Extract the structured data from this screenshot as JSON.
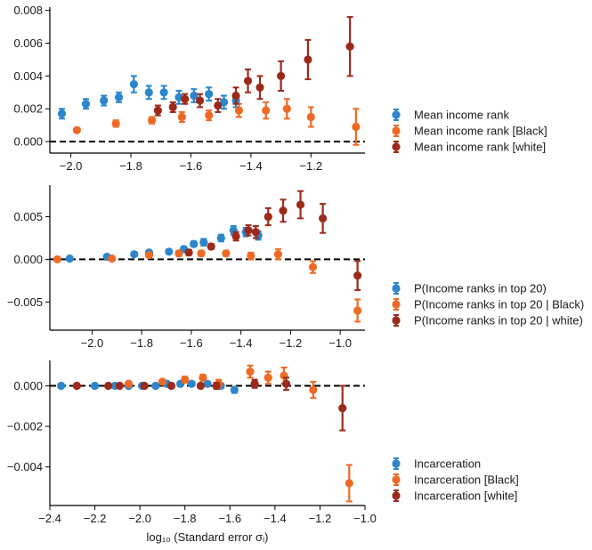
{
  "colors": {
    "blue": "#2b86cc",
    "orange": "#ee6a24",
    "darkred": "#9c2a1a",
    "axis": "#000000"
  },
  "chart_data": [
    {
      "type": "scatter",
      "panel": "top",
      "xlabel": "",
      "ylabel": "",
      "xlim": [
        -2.07,
        -1.02
      ],
      "ylim": [
        -0.0007,
        0.0082
      ],
      "xticks": [
        {
          "v": -2.0,
          "l": "−2.0"
        },
        {
          "v": -1.8,
          "l": "−1.8"
        },
        {
          "v": -1.6,
          "l": "−1.6"
        },
        {
          "v": -1.4,
          "l": "−1.4"
        },
        {
          "v": -1.2,
          "l": "−1.2"
        }
      ],
      "yticks": [
        {
          "v": 0.0,
          "l": "0.000"
        },
        {
          "v": 0.002,
          "l": "0.002"
        },
        {
          "v": 0.004,
          "l": "0.004"
        },
        {
          "v": 0.006,
          "l": "0.006"
        },
        {
          "v": 0.008,
          "l": "0.008"
        }
      ],
      "legend_position": "right",
      "series": [
        {
          "name": "Mean income rank",
          "color": "blue",
          "points": [
            [
              -2.03,
              0.0017,
              0.0003
            ],
            [
              -1.95,
              0.0023,
              0.0003
            ],
            [
              -1.89,
              0.0025,
              0.0003
            ],
            [
              -1.84,
              0.0027,
              0.0003
            ],
            [
              -1.79,
              0.0035,
              0.0005
            ],
            [
              -1.74,
              0.003,
              0.0004
            ],
            [
              -1.69,
              0.003,
              0.0004
            ],
            [
              -1.64,
              0.0027,
              0.0004
            ],
            [
              -1.59,
              0.0028,
              0.0004
            ],
            [
              -1.54,
              0.0029,
              0.0004
            ],
            [
              -1.49,
              0.0024,
              0.0004
            ],
            [
              -1.45,
              0.0025,
              0.0004
            ]
          ]
        },
        {
          "name": "Mean income rank [Black]",
          "color": "orange",
          "points": [
            [
              -1.98,
              0.0007,
              0.0001
            ],
            [
              -1.85,
              0.0011,
              0.0002
            ],
            [
              -1.73,
              0.0013,
              0.0002
            ],
            [
              -1.63,
              0.0015,
              0.0003
            ],
            [
              -1.54,
              0.0016,
              0.0003
            ],
            [
              -1.44,
              0.0019,
              0.0004
            ],
            [
              -1.35,
              0.0019,
              0.0005
            ],
            [
              -1.28,
              0.002,
              0.0006
            ],
            [
              -1.2,
              0.0015,
              0.0006
            ],
            [
              -1.05,
              0.0009,
              0.0011
            ]
          ]
        },
        {
          "name": "Mean income rank [white]",
          "color": "darkred",
          "points": [
            [
              -1.71,
              0.0019,
              0.0003
            ],
            [
              -1.66,
              0.0021,
              0.0003
            ],
            [
              -1.62,
              0.0026,
              0.0003
            ],
            [
              -1.57,
              0.0025,
              0.0004
            ],
            [
              -1.51,
              0.0022,
              0.0004
            ],
            [
              -1.45,
              0.0028,
              0.0005
            ],
            [
              -1.41,
              0.0037,
              0.0007
            ],
            [
              -1.37,
              0.0033,
              0.0007
            ],
            [
              -1.3,
              0.004,
              0.0009
            ],
            [
              -1.21,
              0.005,
              0.0012
            ],
            [
              -1.07,
              0.0058,
              0.0018
            ]
          ]
        }
      ]
    },
    {
      "type": "scatter",
      "panel": "middle",
      "xlabel": "",
      "ylabel": "",
      "xlim": [
        -2.17,
        -0.9
      ],
      "ylim": [
        -0.0083,
        0.0087
      ],
      "xticks": [
        {
          "v": -2.0,
          "l": "−2.0"
        },
        {
          "v": -1.8,
          "l": "−1.8"
        },
        {
          "v": -1.6,
          "l": "−1.6"
        },
        {
          "v": -1.4,
          "l": "−1.4"
        },
        {
          "v": -1.2,
          "l": "−1.2"
        },
        {
          "v": -1.0,
          "l": "−1.0"
        }
      ],
      "yticks": [
        {
          "v": -0.005,
          "l": "−0.005"
        },
        {
          "v": 0.0,
          "l": "0.000"
        },
        {
          "v": 0.005,
          "l": "0.005"
        }
      ],
      "legend_position": "right",
      "series": [
        {
          "name": "P(Income ranks in top 20)",
          "color": "blue",
          "points": [
            [
              -2.09,
              0.0001,
              0.0001
            ],
            [
              -1.94,
              0.0003,
              0.0001
            ],
            [
              -1.83,
              0.0006,
              0.0002
            ],
            [
              -1.77,
              0.0008,
              0.0002
            ],
            [
              -1.69,
              0.0009,
              0.0002
            ],
            [
              -1.63,
              0.0012,
              0.0003
            ],
            [
              -1.59,
              0.0018,
              0.0003
            ],
            [
              -1.55,
              0.002,
              0.0004
            ],
            [
              -1.48,
              0.0025,
              0.0004
            ],
            [
              -1.43,
              0.0034,
              0.0005
            ],
            [
              -1.38,
              0.0032,
              0.0005
            ],
            [
              -1.33,
              0.0028,
              0.0005
            ]
          ]
        },
        {
          "name": "P(Income ranks in top 20 | Black)",
          "color": "orange",
          "points": [
            [
              -2.14,
              0.0,
              0.0002
            ],
            [
              -1.92,
              0.0001,
              0.0002
            ],
            [
              -1.77,
              0.0005,
              0.0002
            ],
            [
              -1.65,
              0.0007,
              0.0003
            ],
            [
              -1.56,
              0.0007,
              0.0003
            ],
            [
              -1.46,
              0.0007,
              0.0003
            ],
            [
              -1.36,
              0.0004,
              0.0004
            ],
            [
              -1.25,
              0.0006,
              0.0006
            ],
            [
              -1.11,
              -0.0009,
              0.0007
            ],
            [
              -0.93,
              -0.006,
              0.0013
            ]
          ]
        },
        {
          "name": "P(Income ranks in top 20 | white)",
          "color": "darkred",
          "points": [
            [
              -1.61,
              0.0008,
              0.0003
            ],
            [
              -1.52,
              0.0015,
              0.0003
            ],
            [
              -1.42,
              0.0027,
              0.0005
            ],
            [
              -1.37,
              0.0034,
              0.0006
            ],
            [
              -1.34,
              0.0032,
              0.0007
            ],
            [
              -1.29,
              0.005,
              0.001
            ],
            [
              -1.23,
              0.0057,
              0.0013
            ],
            [
              -1.16,
              0.0064,
              0.0016
            ],
            [
              -1.07,
              0.0048,
              0.0017
            ],
            [
              -0.93,
              -0.0019,
              0.0017
            ]
          ]
        }
      ]
    },
    {
      "type": "scatter",
      "panel": "bottom",
      "xlabel": "log₁₀ (Standard error σᵢ)",
      "ylabel": "",
      "xlim": [
        -2.4,
        -1.0
      ],
      "ylim": [
        -0.0059,
        0.00125
      ],
      "xticks": [
        {
          "v": -2.4,
          "l": "−2.4"
        },
        {
          "v": -2.2,
          "l": "−2.2"
        },
        {
          "v": -2.0,
          "l": "−2.0"
        },
        {
          "v": -1.8,
          "l": "−1.8"
        },
        {
          "v": -1.6,
          "l": "−1.6"
        },
        {
          "v": -1.4,
          "l": "−1.4"
        },
        {
          "v": -1.2,
          "l": "−1.2"
        },
        {
          "v": -1.0,
          "l": "−1.0"
        }
      ],
      "yticks": [
        {
          "v": -0.004,
          "l": "−0.004"
        },
        {
          "v": -0.002,
          "l": "−0.002"
        },
        {
          "v": 0.0,
          "l": "0.000"
        }
      ],
      "legend_position": "right",
      "series": [
        {
          "name": "Incarceration",
          "color": "blue",
          "points": [
            [
              -2.35,
              0.0,
              5e-05
            ],
            [
              -2.2,
              0.0,
              5e-05
            ],
            [
              -2.11,
              0.0,
              5e-05
            ],
            [
              -2.05,
              0.0,
              5e-05
            ],
            [
              -1.99,
              0.0,
              6e-05
            ],
            [
              -1.93,
              0.0,
              6e-05
            ],
            [
              -1.88,
              0.0001,
              8e-05
            ],
            [
              -1.82,
              0.0001,
              8e-05
            ],
            [
              -1.77,
              0.0001,
              0.0001
            ],
            [
              -1.7,
              0.0001,
              0.0001
            ],
            [
              -1.64,
              0.0,
              0.0001
            ],
            [
              -1.58,
              -0.0002,
              0.00015
            ]
          ]
        },
        {
          "name": "Incarceration [Black]",
          "color": "orange",
          "points": [
            [
              -2.05,
              0.0001,
              0.0001
            ],
            [
              -1.9,
              0.0002,
              0.0001
            ],
            [
              -1.8,
              0.0003,
              0.00015
            ],
            [
              -1.72,
              0.0004,
              0.00015
            ],
            [
              -1.65,
              0.0001,
              0.0002
            ],
            [
              -1.51,
              0.0007,
              0.0003
            ],
            [
              -1.43,
              0.0004,
              0.0003
            ],
            [
              -1.36,
              0.0005,
              0.0004
            ],
            [
              -1.23,
              -0.0002,
              0.0004
            ],
            [
              -1.07,
              -0.0048,
              0.0009
            ]
          ]
        },
        {
          "name": "Incarceration [white]",
          "color": "darkred",
          "points": [
            [
              -2.28,
              0.0,
              5e-05
            ],
            [
              -2.14,
              0.0,
              5e-05
            ],
            [
              -2.09,
              0.0,
              5e-05
            ],
            [
              -1.98,
              0.0,
              6e-05
            ],
            [
              -1.86,
              0.0,
              8e-05
            ],
            [
              -1.73,
              0.0,
              0.0001
            ],
            [
              -1.66,
              0.0,
              0.00015
            ],
            [
              -1.49,
              0.0001,
              0.0002
            ],
            [
              -1.35,
              0.0001,
              0.0003
            ],
            [
              -1.1,
              -0.0011,
              0.0011
            ]
          ]
        }
      ]
    }
  ]
}
